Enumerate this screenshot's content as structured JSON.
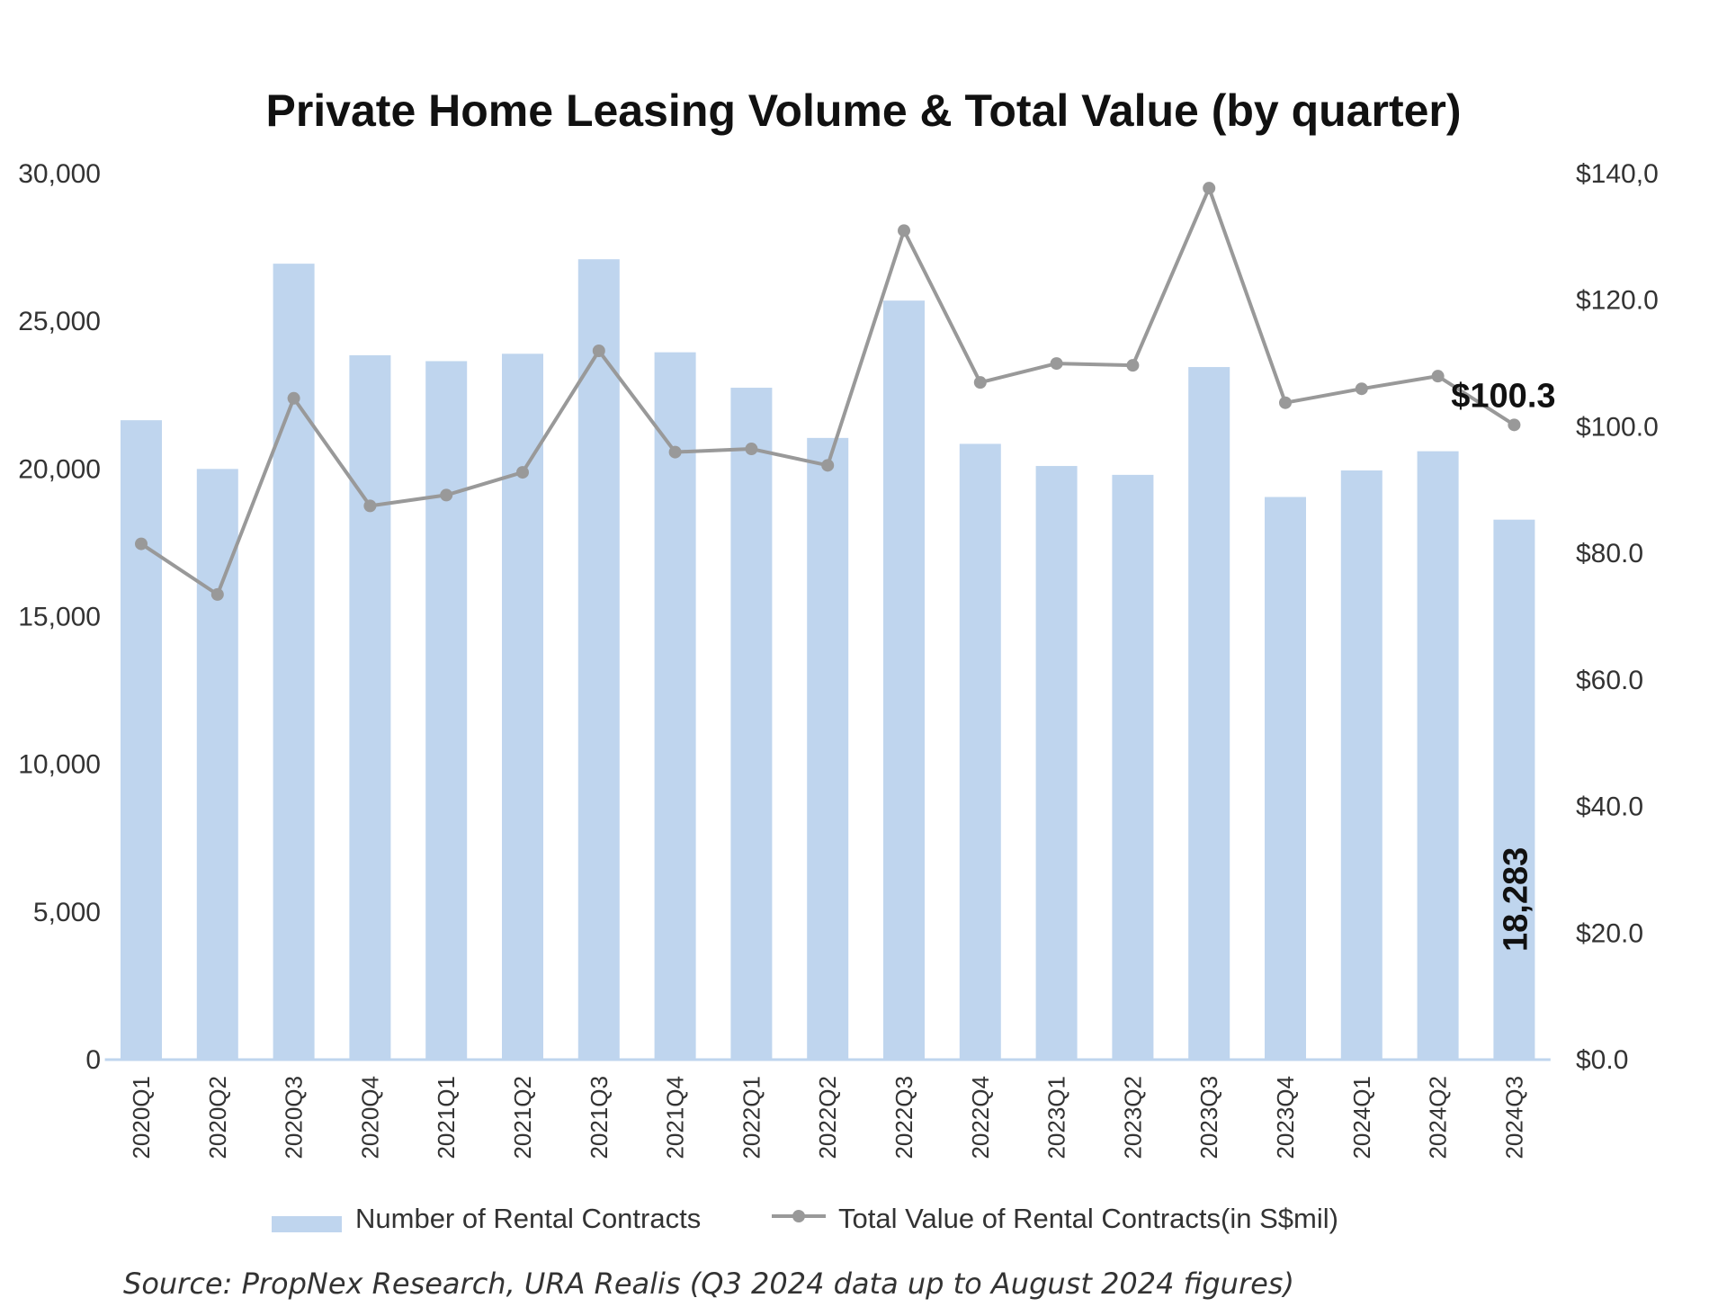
{
  "chart_data": {
    "type": "bar",
    "title": "Private Home Leasing Volume & Total Value (by quarter)",
    "categories": [
      "2020Q1",
      "2020Q2",
      "2020Q3",
      "2020Q4",
      "2021Q1",
      "2021Q2",
      "2021Q3",
      "2021Q4",
      "2022Q1",
      "2022Q2",
      "2022Q3",
      "2022Q4",
      "2023Q1",
      "2023Q2",
      "2023Q3",
      "2023Q4",
      "2024Q1",
      "2024Q2",
      "2024Q3"
    ],
    "series": [
      {
        "name": "Number of Rental Contracts",
        "type": "bar",
        "axis": "left",
        "color": "#bfd5ee",
        "values": [
          21650,
          20000,
          26950,
          23850,
          23650,
          23900,
          27100,
          23950,
          22750,
          21050,
          25700,
          20850,
          20100,
          19800,
          23450,
          19050,
          19950,
          20600,
          18283
        ]
      },
      {
        "name": "Total Value of Rental Contracts(in S$mil)",
        "type": "line",
        "axis": "right",
        "color": "#999999",
        "values": [
          81.5,
          73.5,
          104.5,
          87.5,
          89.2,
          92.8,
          112.0,
          96.0,
          96.5,
          93.9,
          131.0,
          107.0,
          110.0,
          109.7,
          137.7,
          103.8,
          106.0,
          108.0,
          100.3
        ]
      }
    ],
    "y_left": {
      "ylim": [
        0,
        30000
      ],
      "ticks": [
        "0",
        "5,000",
        "10,000",
        "15,000",
        "20,000",
        "25,000",
        "30,000"
      ],
      "tick_values": [
        0,
        5000,
        10000,
        15000,
        20000,
        25000,
        30000
      ]
    },
    "y_right": {
      "ylim": [
        0,
        140
      ],
      "ticks": [
        "$0.0",
        "$20.0",
        "$40.0",
        "$60.0",
        "$80.0",
        "$100.0",
        "$120.0",
        "$140,0"
      ],
      "tick_values": [
        0,
        20,
        40,
        60,
        80,
        100,
        120,
        140
      ]
    },
    "annotations": [
      {
        "text": "$100.3",
        "target": "line-last"
      },
      {
        "text": "18,283",
        "target": "bar-last"
      }
    ],
    "legend": {
      "placement": "bottom"
    },
    "source": "Source: PropNex Research, URA Realis (Q3 2024 data up to August 2024 figures)",
    "grid": false
  }
}
